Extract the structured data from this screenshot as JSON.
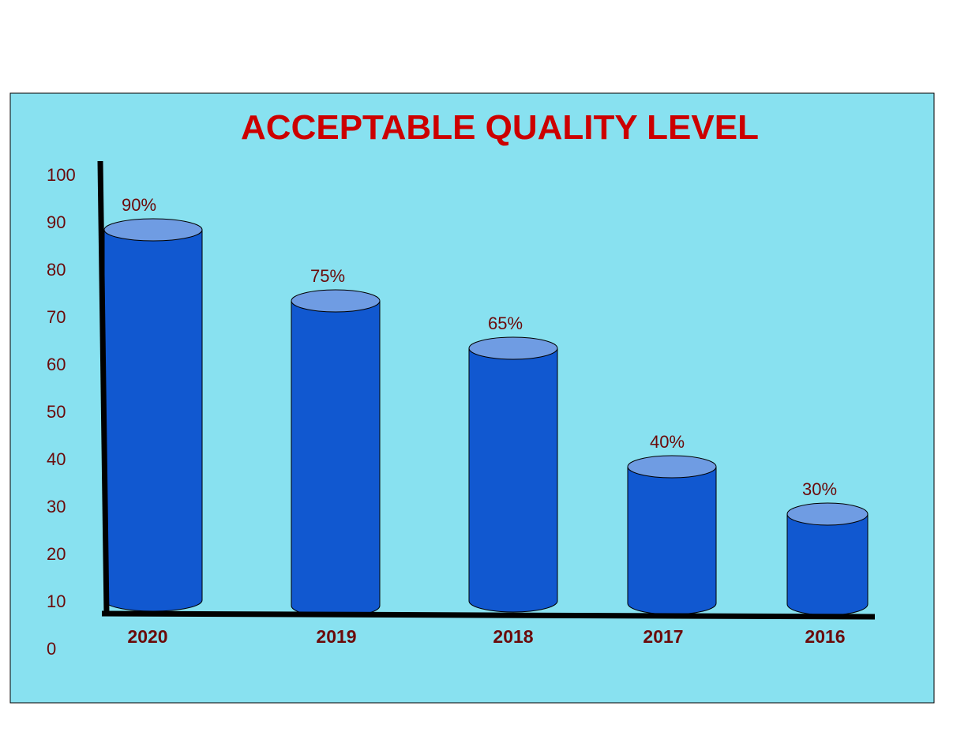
{
  "chart_data": {
    "type": "bar",
    "title": "ACCEPTABLE QUALITY LEVEL",
    "categories": [
      "2020",
      "2019",
      "2018",
      "2017",
      "2016"
    ],
    "values": [
      90,
      75,
      65,
      40,
      30
    ],
    "data_labels": [
      "90%",
      "75%",
      "65%",
      "40%",
      "30%"
    ],
    "yticks": [
      "0",
      "10",
      "20",
      "30",
      "40",
      "50",
      "60",
      "70",
      "80",
      "90",
      "100"
    ],
    "ylim": [
      0,
      100
    ],
    "xlabel": "",
    "ylabel": "",
    "grid": false,
    "legend": "none"
  },
  "colors": {
    "panel_background": "#88e1f0",
    "bar_side": "#1158d0",
    "bar_top": "#6f9ce3",
    "title": "#cc0000",
    "label": "#6b0a0a",
    "axis": "#000000"
  }
}
